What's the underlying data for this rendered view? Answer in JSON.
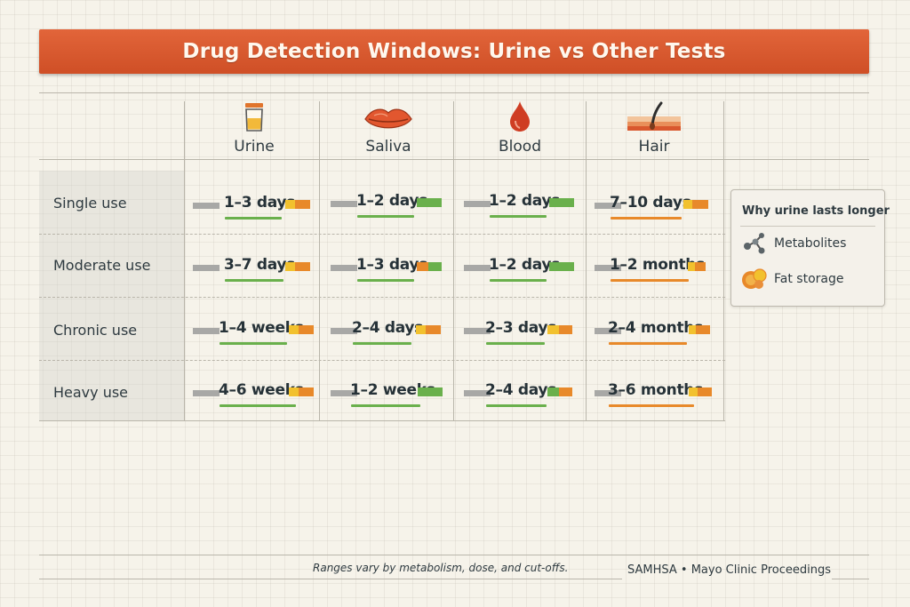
{
  "title": "Drug Detection Windows: Urine vs Other Tests",
  "columns": [
    {
      "label": "Urine",
      "icon": "urine-cup-icon"
    },
    {
      "label": "Saliva",
      "icon": "lips-icon"
    },
    {
      "label": "Blood",
      "icon": "blood-drop-icon"
    },
    {
      "label": "Hair",
      "icon": "hair-follicle-icon"
    }
  ],
  "rows": [
    {
      "label": "Single use",
      "cells": [
        "1–3 days",
        "1–2 days",
        "1–2 days",
        "7–10 days"
      ]
    },
    {
      "label": "Moderate use",
      "cells": [
        "3–7 days",
        "1–3 days",
        "1–2 days",
        "1–2 months"
      ]
    },
    {
      "label": "Chronic use",
      "cells": [
        "1–4 weeks",
        "2–4 days",
        "2–3 days",
        "2–4 months"
      ]
    },
    {
      "label": "Heavy use",
      "cells": [
        "4–6 weeks",
        "1–2 weeks",
        "2–4 days",
        "3–6 months"
      ]
    }
  ],
  "side_panel": {
    "title": "Why urine lasts longer",
    "items": [
      {
        "label": "Metabolites",
        "icon": "molecule-icon"
      },
      {
        "label": "Fat storage",
        "icon": "fat-cell-icon"
      }
    ]
  },
  "footnote": "Ranges vary by metabolism, dose, and cut-offs.",
  "source": "SAMHSA • Mayo Clinic Proceedings",
  "colors": {
    "title_bar": "#d9582e",
    "green": "#6ab04c",
    "yellow": "#f2c12e",
    "orange": "#e8892a"
  }
}
